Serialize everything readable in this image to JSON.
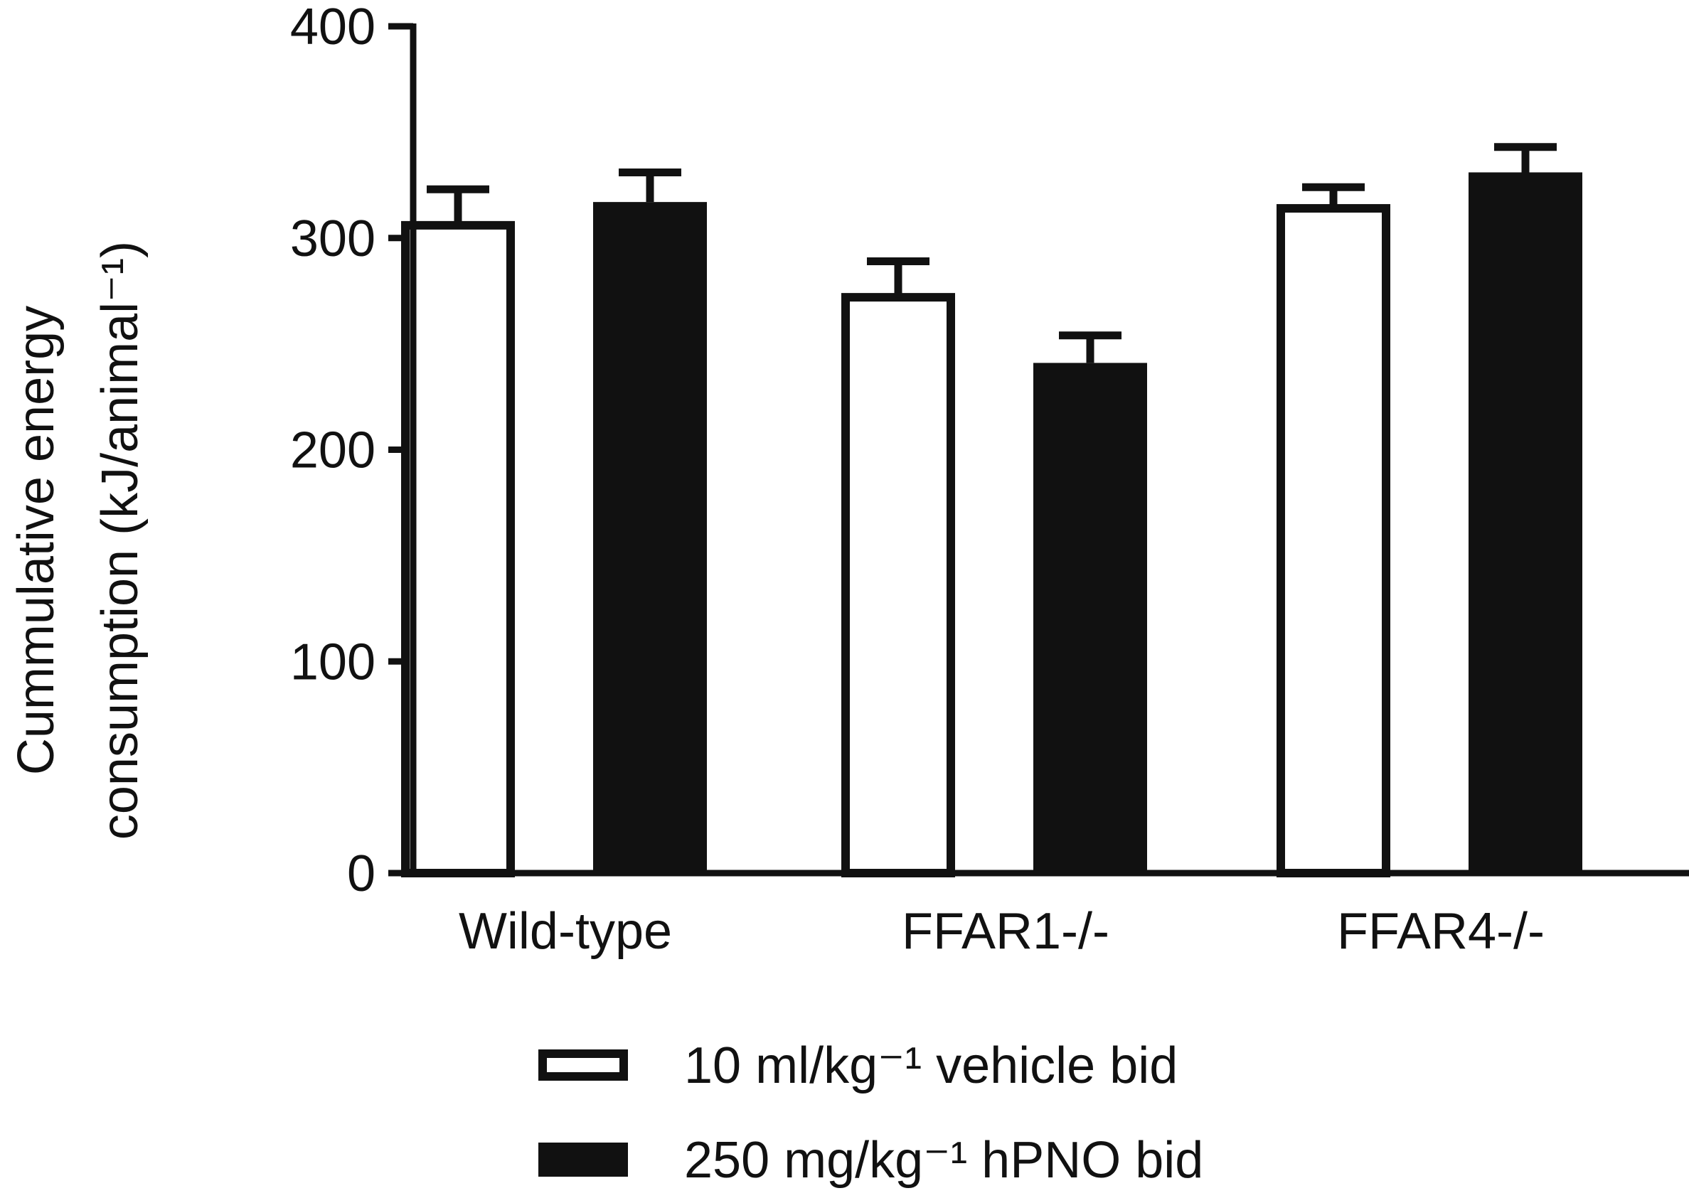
{
  "chart_data": {
    "type": "bar",
    "title": "",
    "xlabel": "",
    "ylabel_lines": [
      "Cummulative energy",
      "consumption (kJ/animal⁻¹)"
    ],
    "ylim": [
      0,
      400
    ],
    "yticks": [
      0,
      100,
      200,
      300,
      400
    ],
    "categories": [
      "Wild-type",
      "FFAR1-/-",
      "FFAR4-/-"
    ],
    "series": [
      {
        "name": "10 ml/kg⁻¹ vehicle bid",
        "style": "open",
        "values": [
          306,
          272,
          314
        ],
        "errors": [
          17,
          17,
          10
        ]
      },
      {
        "name": "250 mg/kg⁻¹ hPNO bid",
        "style": "filled",
        "values": [
          317,
          241,
          331
        ],
        "errors": [
          14,
          13,
          12
        ]
      }
    ],
    "error_bars": "upper only",
    "grid": false,
    "legend_placement": "bottom",
    "colors": {
      "axis": "#111111",
      "filled_bar": "#111111",
      "open_bar_fill": "#ffffff",
      "open_bar_stroke": "#111111"
    }
  }
}
